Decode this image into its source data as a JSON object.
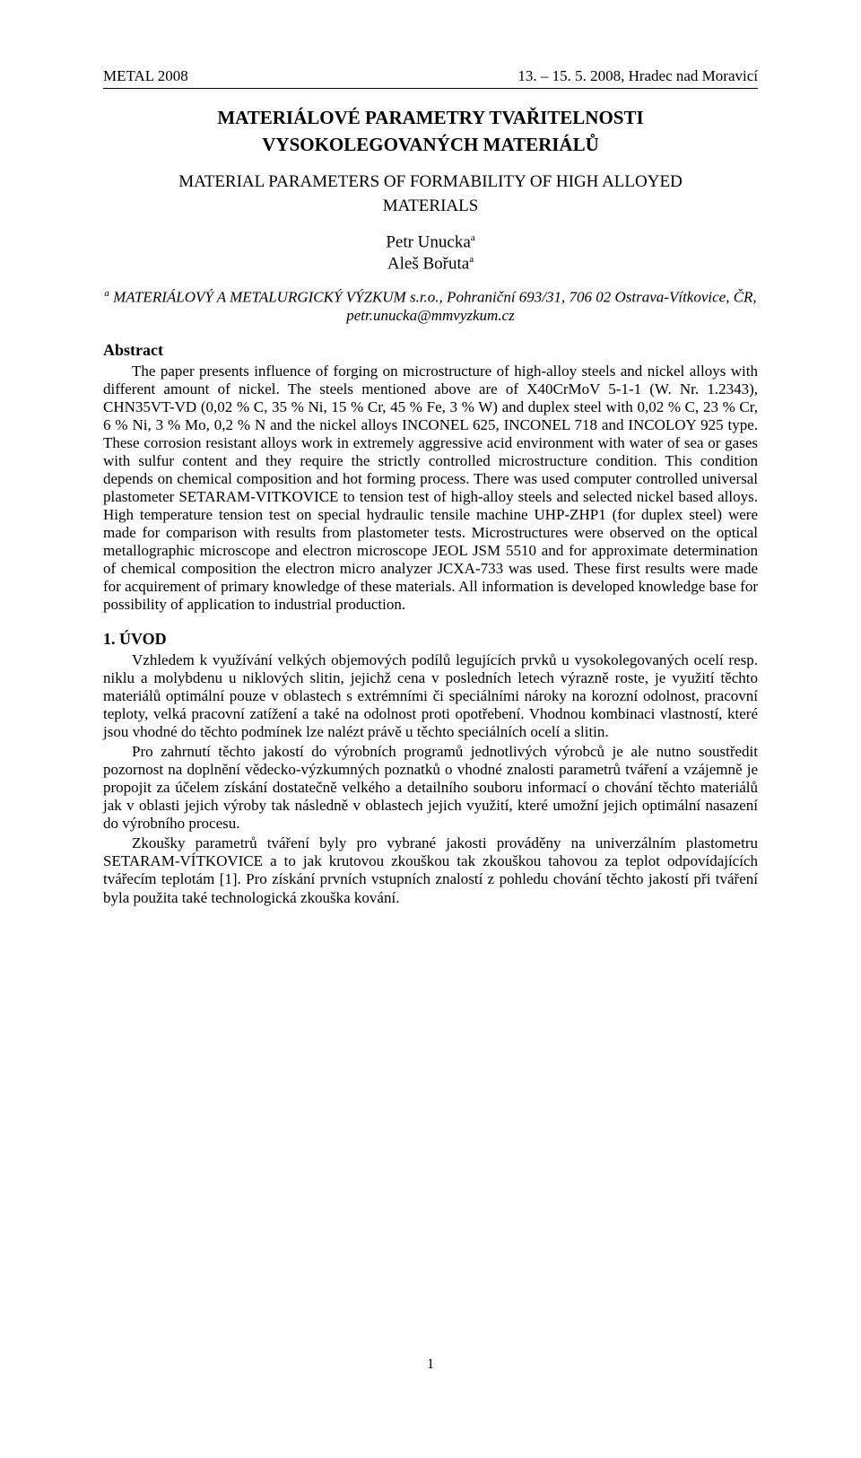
{
  "header": {
    "left": "METAL 2008",
    "right": "13. – 15. 5. 2008, Hradec nad Moravicí"
  },
  "title_cz_line1": "MATERIÁLOVÉ PARAMETRY TVAŘITELNOSTI",
  "title_cz_line2": "VYSOKOLEGOVANÝCH MATERIÁLŮ",
  "title_en_line1": "MATERIAL PARAMETERS OF FORMABILITY OF HIGH ALLOYED",
  "title_en_line2": "MATERIALS",
  "authors": {
    "a1": "Petr Unucka",
    "a2": "Aleš Bořuta",
    "sup": "a"
  },
  "affiliation": {
    "sup": "a",
    "text": " MATERIÁLOVÝ A METALURGICKÝ VÝZKUM s.r.o., Pohraniční 693/31, 706 02 Ostrava-Vítkovice, ČR, petr.unucka@mmvyzkum.cz"
  },
  "abstract": {
    "heading": "Abstract",
    "body": "The paper presents influence of forging on microstructure of high-alloy steels and nickel alloys with different amount of nickel. The steels mentioned above are of X40CrMoV 5-1-1 (W. Nr. 1.2343), CHN35VT-VD (0,02 % C, 35 % Ni, 15 % Cr, 45 % Fe, 3 % W) and duplex steel with 0,02 % C, 23 % Cr, 6 % Ni, 3 % Mo, 0,2 % N and the nickel alloys INCONEL 625, INCONEL 718 and INCOLOY 925 type. These corrosion resistant alloys work in extremely aggressive acid environment with water of sea or gases with sulfur content and they require the strictly controlled microstructure condition. This condition depends on chemical composition and hot forming process. There was used computer controlled universal plastometer SETARAM-VITKOVICE to tension test of high-alloy steels and selected nickel based alloys. High temperature tension test on special hydraulic tensile machine UHP-ZHP1 (for duplex steel) were made for comparison with results from plastometer tests. Microstructures were observed on the optical metallographic microscope and electron microscope JEOL JSM 5510 and for approximate determination of chemical composition the electron micro analyzer JCXA-733 was used. These first results were made for acquirement of primary knowledge of these materials. All information is developed knowledge base for possibility of application to industrial production."
  },
  "section1": {
    "heading": "1.  ÚVOD",
    "p1": "Vzhledem k využívání velkých objemových podílů legujících prvků u vysokolegovaných ocelí resp. niklu a molybdenu u niklových slitin, jejichž cena v posledních letech výrazně roste, je využití těchto materiálů optimální pouze v oblastech s extrémními či speciálními nároky na korozní odolnost, pracovní teploty, velká pracovní zatížení a také na odolnost proti opotřebení. Vhodnou kombinaci vlastností, které jsou vhodné do těchto podmínek lze nalézt právě u těchto speciálních ocelí a slitin.",
    "p2": "Pro zahrnutí těchto jakostí do výrobních programů jednotlivých výrobců je ale nutno soustředit pozornost na doplnění vědecko-výzkumných poznatků o vhodné znalosti parametrů tváření a vzájemně je propojit za účelem získání dostatečně velkého a detailního souboru informací o chování těchto materiálů jak v oblasti jejich výroby tak následně v oblastech jejich využití, které umožní jejich optimální nasazení do výrobního procesu.",
    "p3": "Zkoušky parametrů tváření byly pro vybrané jakosti prováděny na univerzálním plastometru SETARAM-VÍTKOVICE a to jak krutovou zkouškou tak zkouškou tahovou za teplot odpovídajících tvářecím teplotám [1]. Pro získání prvních vstupních znalostí z pohledu chování těchto jakostí při tváření byla použita také technologická zkouška kování."
  },
  "page_number": "1"
}
